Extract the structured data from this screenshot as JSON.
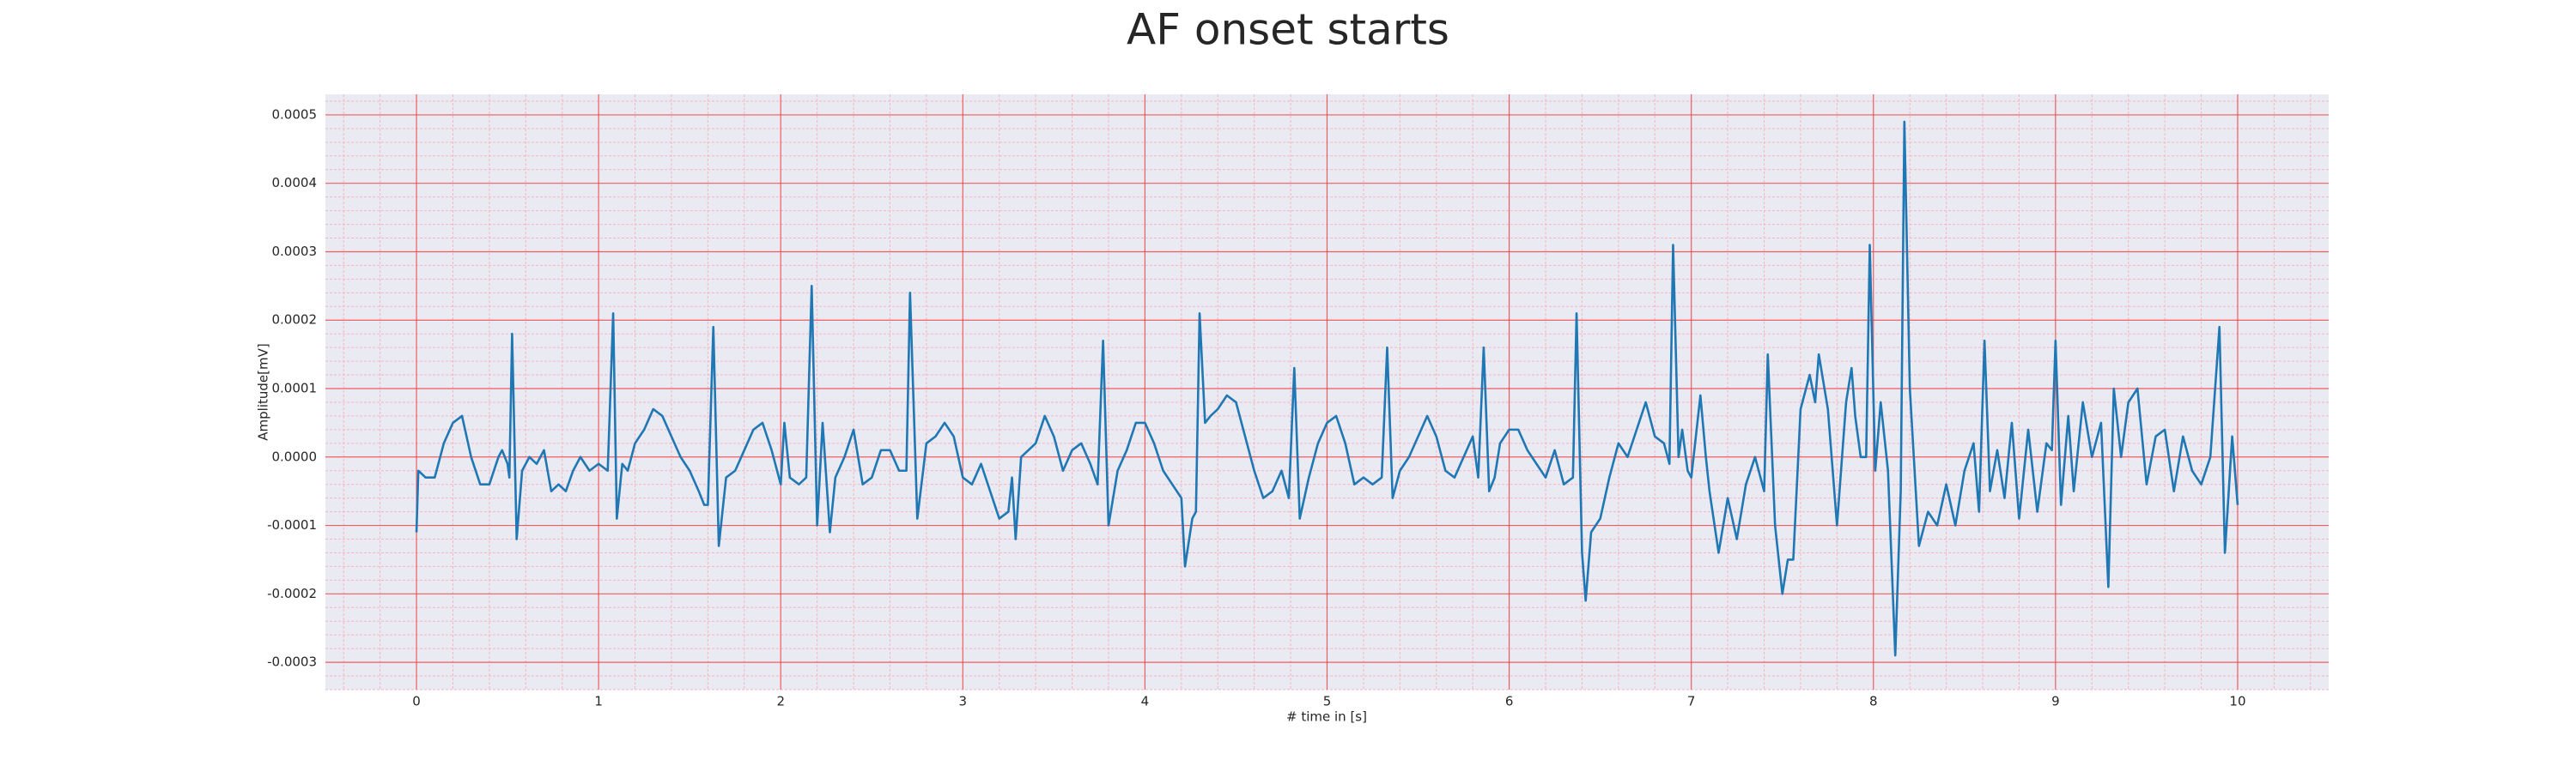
{
  "chart_data": {
    "type": "line",
    "title": "AF onset starts",
    "xlabel": "# time in [s]",
    "ylabel": "Amplitude[mV]",
    "xlim": [
      -0.5,
      10.5
    ],
    "ylim": [
      -0.00034,
      0.00053
    ],
    "xticks": [
      0,
      1,
      2,
      3,
      4,
      5,
      6,
      7,
      8,
      9,
      10
    ],
    "yticks": [
      -0.0003,
      -0.0002,
      -0.0001,
      {
        "value": 0,
        "label": "0.0000"
      },
      0.0001,
      0.0002,
      0.0003,
      0.0004,
      0.0005
    ],
    "grid": true,
    "minor_grid": true,
    "series": [
      {
        "color": "#1f77b4",
        "x": [
          0,
          0.01,
          0.05,
          0.1,
          0.15,
          0.2,
          0.25,
          0.3,
          0.35,
          0.4,
          0.45,
          0.47,
          0.5,
          0.51,
          0.525,
          0.55,
          0.58,
          0.62,
          0.66,
          0.7,
          0.74,
          0.78,
          0.82,
          0.86,
          0.9,
          0.95,
          1.0,
          1.05,
          1.08,
          1.1,
          1.13,
          1.16,
          1.2,
          1.25,
          1.3,
          1.35,
          1.4,
          1.45,
          1.5,
          1.55,
          1.58,
          1.6,
          1.63,
          1.66,
          1.7,
          1.75,
          1.8,
          1.85,
          1.9,
          1.95,
          2.0,
          2.02,
          2.05,
          2.1,
          2.14,
          2.17,
          2.2,
          2.23,
          2.27,
          2.3,
          2.35,
          2.4,
          2.45,
          2.5,
          2.55,
          2.6,
          2.65,
          2.69,
          2.71,
          2.75,
          2.8,
          2.85,
          2.9,
          2.95,
          3.0,
          3.05,
          3.1,
          3.15,
          3.2,
          3.25,
          3.27,
          3.29,
          3.32,
          3.36,
          3.4,
          3.45,
          3.5,
          3.55,
          3.6,
          3.65,
          3.7,
          3.74,
          3.77,
          3.8,
          3.85,
          3.9,
          3.95,
          4.0,
          4.05,
          4.1,
          4.15,
          4.2,
          4.22,
          4.26,
          4.28,
          4.3,
          4.33,
          4.36,
          4.4,
          4.45,
          4.5,
          4.55,
          4.6,
          4.65,
          4.7,
          4.75,
          4.79,
          4.82,
          4.85,
          4.9,
          4.95,
          5.0,
          5.05,
          5.1,
          5.15,
          5.2,
          5.25,
          5.3,
          5.33,
          5.36,
          5.4,
          5.45,
          5.5,
          5.55,
          5.6,
          5.65,
          5.7,
          5.75,
          5.8,
          5.83,
          5.86,
          5.89,
          5.92,
          5.95,
          6.0,
          6.05,
          6.1,
          6.15,
          6.2,
          6.25,
          6.3,
          6.35,
          6.37,
          6.4,
          6.42,
          6.45,
          6.5,
          6.55,
          6.6,
          6.65,
          6.7,
          6.75,
          6.8,
          6.85,
          6.88,
          6.9,
          6.93,
          6.95,
          6.98,
          7.0,
          7.05,
          7.08,
          7.1,
          7.15,
          7.2,
          7.25,
          7.3,
          7.35,
          7.4,
          7.42,
          7.46,
          7.5,
          7.53,
          7.56,
          7.6,
          7.65,
          7.68,
          7.7,
          7.75,
          7.8,
          7.85,
          7.88,
          7.9,
          7.93,
          7.96,
          7.98,
          8.01,
          8.04,
          8.08,
          8.12,
          8.15,
          8.17,
          8.2,
          8.25,
          8.3,
          8.35,
          8.4,
          8.45,
          8.5,
          8.55,
          8.58,
          8.61,
          8.64,
          8.68,
          8.72,
          8.76,
          8.8,
          8.85,
          8.9,
          8.95,
          8.98,
          9.0,
          9.03,
          9.07,
          9.1,
          9.15,
          9.2,
          9.25,
          9.29,
          9.32,
          9.36,
          9.4,
          9.45,
          9.5,
          9.55,
          9.6,
          9.65,
          9.7,
          9.75,
          9.8,
          9.85,
          9.9,
          9.93,
          9.97,
          10.0
        ],
        "values": [
          -0.00011,
          -2e-05,
          -3e-05,
          -3e-05,
          2e-05,
          5e-05,
          6e-05,
          0,
          -4e-05,
          -4e-05,
          0,
          1e-05,
          -1e-05,
          -3e-05,
          0.00018,
          -0.00012,
          -2e-05,
          0,
          -1e-05,
          1e-05,
          -5e-05,
          -4e-05,
          -5e-05,
          -2e-05,
          0,
          -2e-05,
          -1e-05,
          -2e-05,
          0.00021,
          -9e-05,
          -1e-05,
          -2e-05,
          2e-05,
          4e-05,
          7e-05,
          6e-05,
          3e-05,
          0,
          -2e-05,
          -5e-05,
          -7e-05,
          -7e-05,
          0.00019,
          -0.00013,
          -3e-05,
          -2e-05,
          1e-05,
          4e-05,
          5e-05,
          1e-05,
          -4e-05,
          5e-05,
          -3e-05,
          -4e-05,
          -3e-05,
          0.00025,
          -0.0001,
          5e-05,
          -0.00011,
          -3e-05,
          0,
          4e-05,
          -4e-05,
          -3e-05,
          1e-05,
          1e-05,
          -2e-05,
          -2e-05,
          0.00024,
          -9e-05,
          2e-05,
          3e-05,
          5e-05,
          3e-05,
          -3e-05,
          -4e-05,
          -1e-05,
          -5e-05,
          -9e-05,
          -8e-05,
          -3e-05,
          -0.00012,
          0,
          1e-05,
          2e-05,
          6e-05,
          3e-05,
          -2e-05,
          1e-05,
          2e-05,
          -1e-05,
          -4e-05,
          0.00017,
          -0.0001,
          -2e-05,
          1e-05,
          5e-05,
          5e-05,
          2e-05,
          -2e-05,
          -4e-05,
          -6e-05,
          -0.00016,
          -9e-05,
          -8e-05,
          0.00021,
          5e-05,
          6e-05,
          7e-05,
          9e-05,
          8e-05,
          3e-05,
          -2e-05,
          -6e-05,
          -5e-05,
          -2e-05,
          -6e-05,
          0.00013,
          -9e-05,
          -3e-05,
          2e-05,
          5e-05,
          6e-05,
          2e-05,
          -4e-05,
          -3e-05,
          -4e-05,
          -3e-05,
          0.00016,
          -6e-05,
          -2e-05,
          0,
          3e-05,
          6e-05,
          3e-05,
          -2e-05,
          -3e-05,
          0,
          3e-05,
          -3e-05,
          0.00016,
          -5e-05,
          -3e-05,
          2e-05,
          4e-05,
          4e-05,
          1e-05,
          -1e-05,
          -3e-05,
          1e-05,
          -4e-05,
          -3e-05,
          0.00021,
          -0.00014,
          -0.00021,
          -0.00011,
          -9e-05,
          -3e-05,
          2e-05,
          0,
          4e-05,
          8e-05,
          3e-05,
          2e-05,
          -1e-05,
          0.00031,
          0,
          4e-05,
          -2e-05,
          -3e-05,
          9e-05,
          0,
          -5e-05,
          -0.00014,
          -6e-05,
          -0.00012,
          -4e-05,
          0,
          -5e-05,
          0.00015,
          -0.0001,
          -0.0002,
          -0.00015,
          -0.00015,
          7e-05,
          0.00012,
          8e-05,
          0.00015,
          7e-05,
          -0.0001,
          8e-05,
          0.00013,
          6e-05,
          0,
          0,
          0.00031,
          -2e-05,
          8e-05,
          -2e-05,
          -0.00029,
          -5e-05,
          0.00049,
          0.0001,
          -0.00013,
          -8e-05,
          -0.0001,
          -4e-05,
          -0.0001,
          -2e-05,
          2e-05,
          -8e-05,
          0.00017,
          -5e-05,
          1e-05,
          -6e-05,
          5e-05,
          -9e-05,
          4e-05,
          -8e-05,
          2e-05,
          1e-05,
          0.00017,
          -7e-05,
          6e-05,
          -5e-05,
          8e-05,
          0,
          5e-05,
          -0.00019,
          0.0001,
          0,
          8e-05,
          0.0001,
          -4e-05,
          3e-05,
          4e-05,
          -5e-05,
          3e-05,
          -2e-05,
          -4e-05,
          0,
          0.00019,
          -0.00014,
          3e-05,
          -7e-05
        ]
      }
    ]
  }
}
